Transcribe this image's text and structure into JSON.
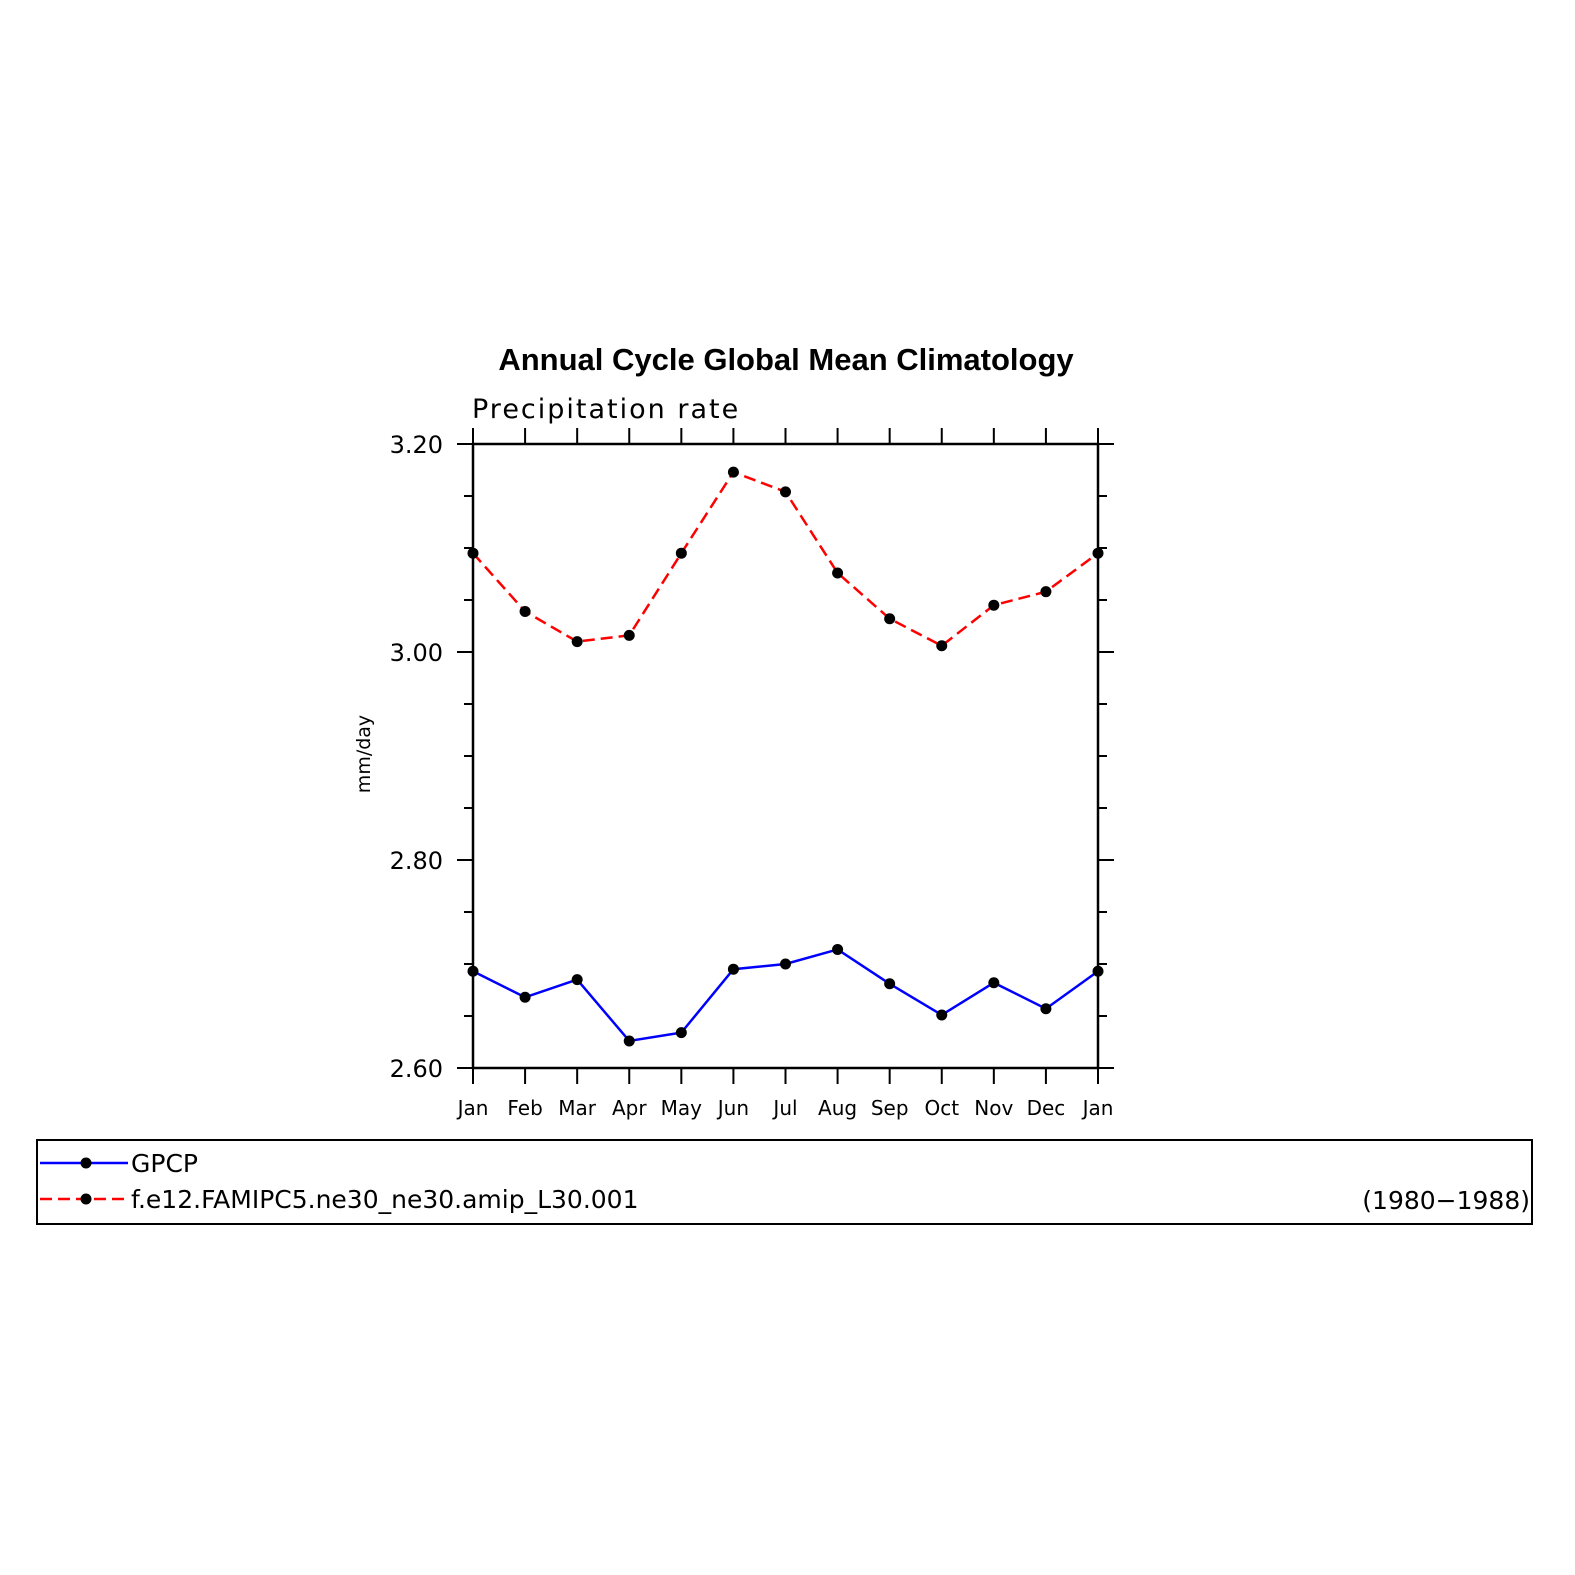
{
  "chart_data": {
    "type": "line",
    "title": "Annual Cycle Global Mean Climatology",
    "subtitle": "Precipitation rate",
    "ylabel": "mm/day",
    "xlabel": "",
    "categories": [
      "Jan",
      "Feb",
      "Mar",
      "Apr",
      "May",
      "Jun",
      "Jul",
      "Aug",
      "Sep",
      "Oct",
      "Nov",
      "Dec",
      "Jan"
    ],
    "ylim": [
      2.6,
      3.2
    ],
    "yticks": [
      "2.60",
      "2.80",
      "3.00",
      "3.20"
    ],
    "ytick_values": [
      2.6,
      2.8,
      3.0,
      3.2
    ],
    "series": [
      {
        "name": "GPCP",
        "color": "#0000ff",
        "style": "solid",
        "values": [
          2.693,
          2.668,
          2.685,
          2.626,
          2.634,
          2.695,
          2.7,
          2.714,
          2.681,
          2.651,
          2.682,
          2.657,
          2.693
        ]
      },
      {
        "name": "f.e12.FAMIPC5.ne30_ne30.amip_L30.001",
        "color": "#ff0000",
        "style": "dashed",
        "values": [
          3.095,
          3.039,
          3.01,
          3.016,
          3.095,
          3.173,
          3.154,
          3.076,
          3.032,
          3.006,
          3.045,
          3.058,
          3.095
        ]
      }
    ],
    "legend_note": "(1980−1988)",
    "grid": false,
    "legend_position": "bottom"
  }
}
